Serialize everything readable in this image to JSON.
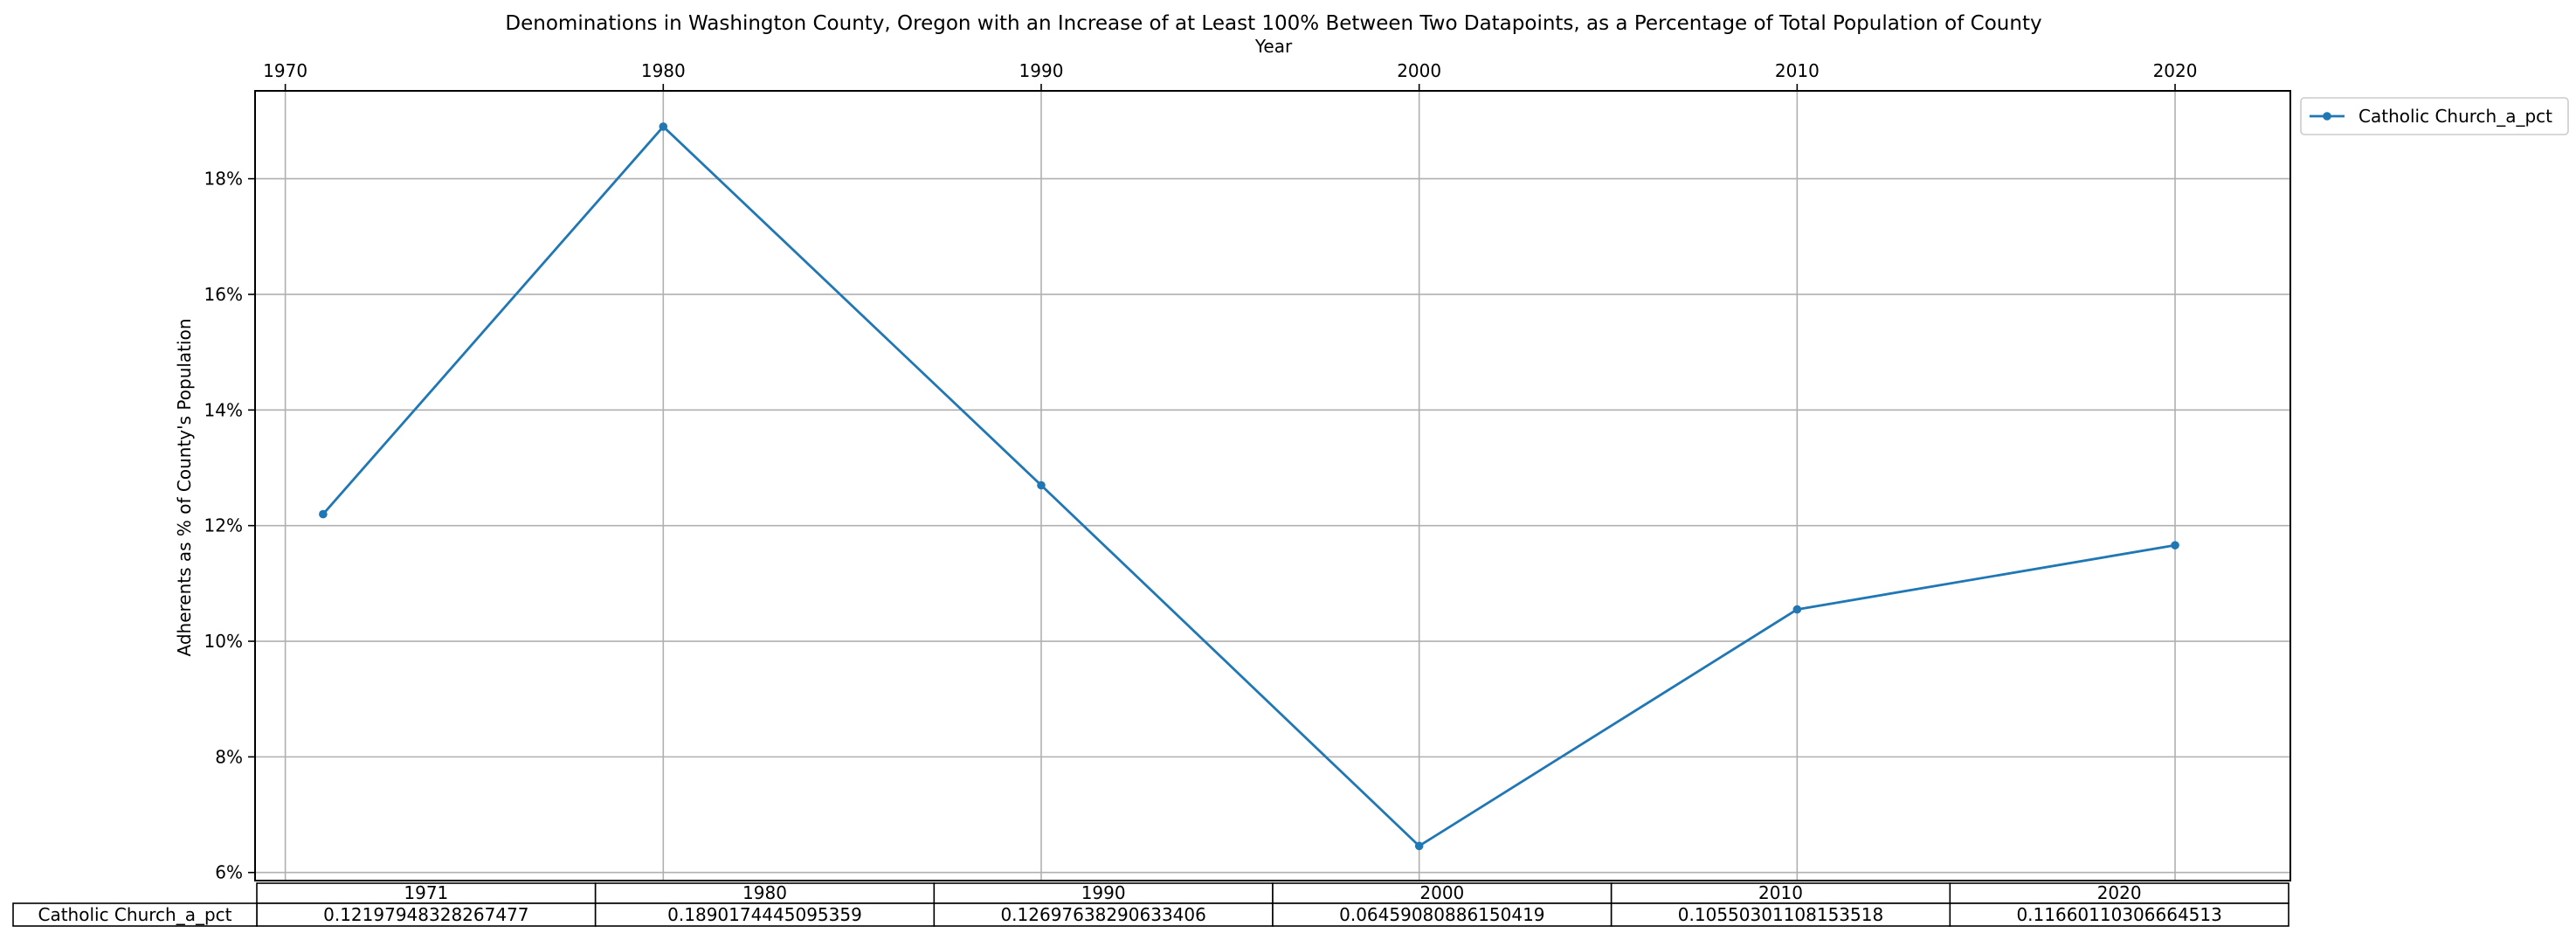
{
  "chart_data": {
    "type": "line",
    "title": "Denominations in Washington County, Oregon with an Increase of at Least 100% Between Two Datapoints, as a Percentage of Total Population of County",
    "xlabel": "Year",
    "ylabel": "Adherents as % of County's Population",
    "x_ticks": [
      1970,
      1980,
      1990,
      2000,
      2010,
      2020
    ],
    "x_tick_labels": [
      "1970",
      "1980",
      "1990",
      "2000",
      "2010",
      "2020"
    ],
    "y_ticks": [
      0.06,
      0.08,
      0.1,
      0.12,
      0.14,
      0.16,
      0.18
    ],
    "y_tick_labels": [
      "6%",
      "8%",
      "10%",
      "12%",
      "14%",
      "16%",
      "18%"
    ],
    "xlim": [
      1969.2,
      2023.05
    ],
    "ylim": [
      0.0586,
      0.1952
    ],
    "x_axis_position": "top",
    "grid": true,
    "legend_position": "outside top-right",
    "x": [
      1971,
      1980,
      1990,
      2000,
      2010,
      2020
    ],
    "series": [
      {
        "name": "Catholic Church_a_pct",
        "color": "#1f77b4",
        "marker": "dot",
        "values": [
          0.12197948328267477,
          0.1890174445095359,
          0.12697638290633406,
          0.06459080886150419,
          0.10550301108153518,
          0.11660110306664513
        ]
      }
    ],
    "table": {
      "col_labels": [
        "1971",
        "1980",
        "1990",
        "2000",
        "2010",
        "2020"
      ],
      "row_label": "Catholic Church_a_pct",
      "cells": [
        "0.12197948328267477",
        "0.1890174445095359",
        "0.12697638290633406",
        "0.06459080886150419",
        "0.10550301108153518",
        "0.11660110306664513"
      ]
    }
  }
}
